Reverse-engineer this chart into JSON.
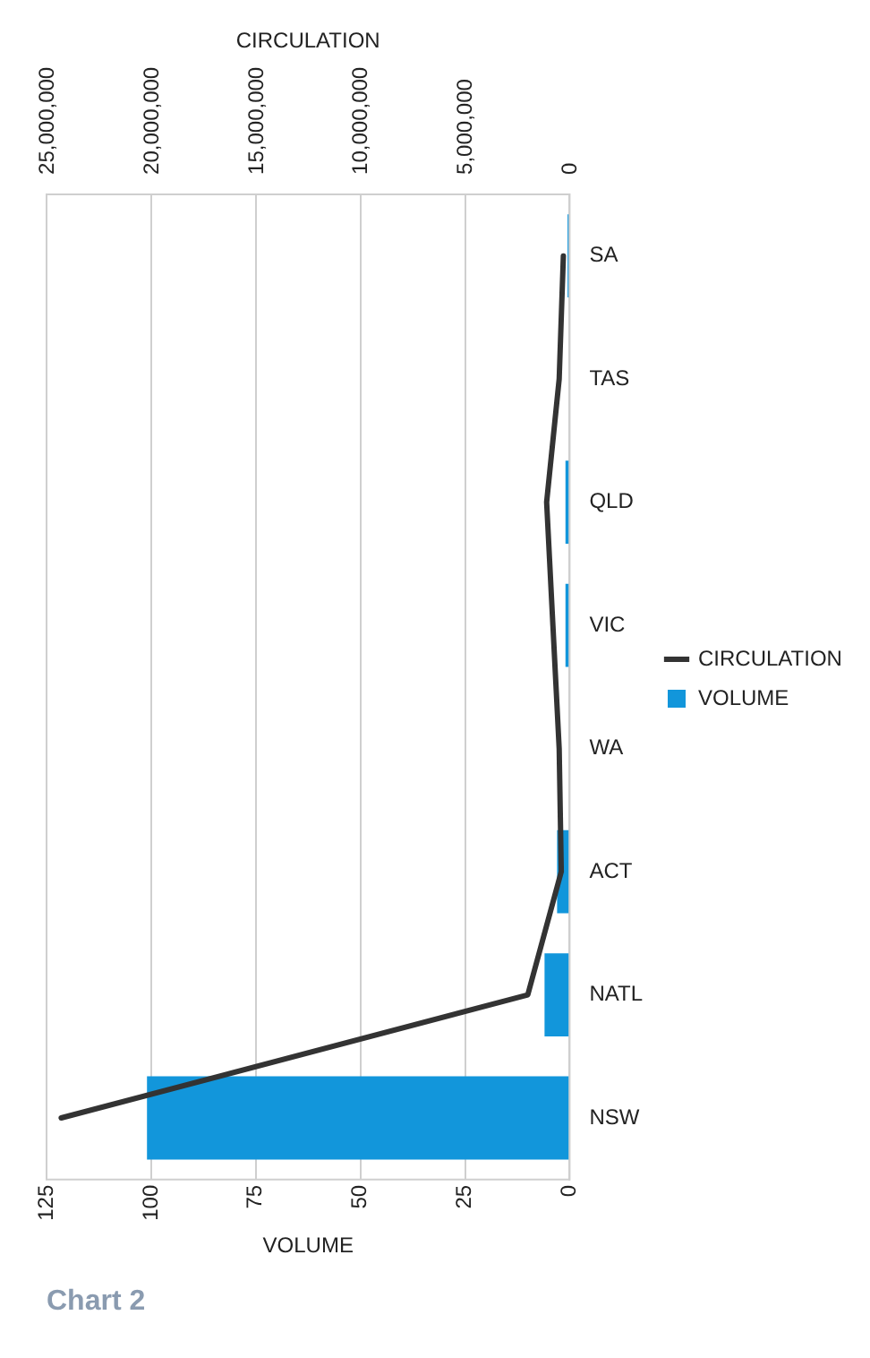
{
  "chart_data": {
    "type": "bar",
    "title": "Chart 2",
    "orientation": "horizontal",
    "categories": [
      "SA",
      "TAS",
      "QLD",
      "VIC",
      "WA",
      "ACT",
      "NATL",
      "NSW"
    ],
    "series": [
      {
        "name": "VOLUME",
        "color": "#1296db",
        "values": [
          0.5,
          0,
          1,
          1,
          0,
          3,
          6,
          101
        ]
      },
      {
        "name": "CIRCULATION",
        "type": "line",
        "axis": "x2",
        "color": "#333333",
        "values": [
          300000,
          500000,
          1100000,
          800000,
          500000,
          400000,
          2000000,
          24300000
        ]
      }
    ],
    "xlabel": "VOLUME",
    "x2label": "CIRCULATION",
    "xlim": [
      125,
      0
    ],
    "xticks": [
      0,
      25,
      50,
      75,
      100,
      125
    ],
    "x2lim": [
      25000000,
      0
    ],
    "x2ticks": [
      {
        "value": 0,
        "label": "0"
      },
      {
        "value": 5000000,
        "label": "5,000,000"
      },
      {
        "value": 10000000,
        "label": "10,000,000"
      },
      {
        "value": 15000000,
        "label": "15,000,000"
      },
      {
        "value": 20000000,
        "label": "20,000,000"
      },
      {
        "value": 25000000,
        "label": "25,000,000"
      }
    ],
    "grid": "x",
    "legend": "right",
    "marker": "none",
    "line_style": "solid"
  }
}
